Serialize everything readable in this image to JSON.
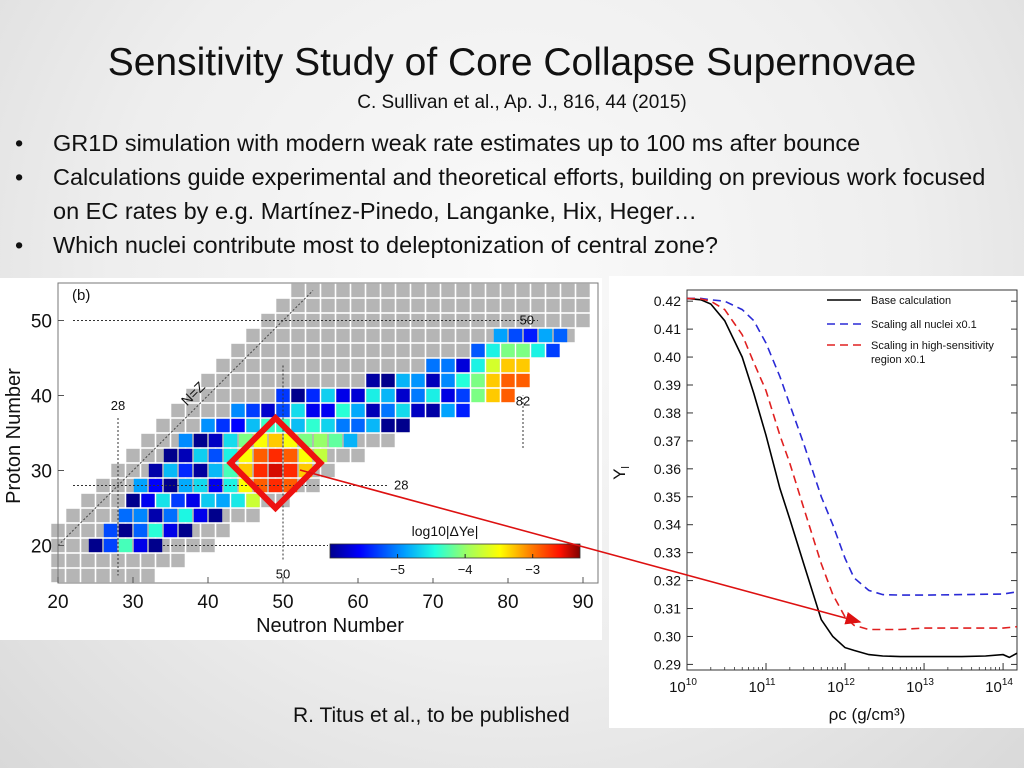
{
  "title": "Sensitivity Study of Core Collapse Supernovae",
  "citation": "C. Sullivan et al., Ap. J., 816, 44 (2015)",
  "bullets": [
    "GR1D simulation with modern weak rate estimates up to 100 ms after bounce",
    "Calculations guide experimental and theoretical efforts, building on previous work focused on EC rates by e.g. Martínez-Pinedo, Langanke, Hix, Heger…",
    "Which nuclei contribute most to deleptonization of central zone?"
  ],
  "bullet_marker": "•",
  "credit": "R. Titus et al., to be published",
  "colors": {
    "highlight": "#ee1111",
    "arrow": "#dd1111",
    "grey_cell": "#b5b5b5",
    "base": "#000000",
    "all": "#2a2ad6",
    "high": "#e02020"
  },
  "chart_data": [
    {
      "type": "heatmap",
      "panel_label": "(b)",
      "xlabel": "Neutron Number",
      "ylabel": "Proton Number",
      "xlim": [
        20,
        92
      ],
      "ylim": [
        15,
        55
      ],
      "x_ticks": [
        20,
        30,
        40,
        50,
        60,
        70,
        80,
        90
      ],
      "y_ticks": [
        20,
        30,
        40,
        50
      ],
      "magic_lines": [
        {
          "axis": "x",
          "value": 28,
          "label": "28"
        },
        {
          "axis": "x",
          "value": 50,
          "label": "50"
        },
        {
          "axis": "x",
          "value": 82,
          "label": "82"
        },
        {
          "axis": "y",
          "value": 20,
          "label": "20"
        },
        {
          "axis": "y",
          "value": 28,
          "label": "28"
        },
        {
          "axis": "y",
          "value": 50,
          "label": "50"
        }
      ],
      "nz_label": "N=Z",
      "colorbar": {
        "label": "log10|ΔYe|",
        "range": [
          -6,
          -2.3
        ],
        "ticks": [
          {
            "value": -5,
            "label": "−5"
          },
          {
            "value": -4,
            "label": "−4"
          },
          {
            "value": -3,
            "label": "−3"
          }
        ]
      },
      "sensitivity_band": [
        {
          "z": 20,
          "n_from": 25,
          "n_to": 33
        },
        {
          "z": 22,
          "n_from": 27,
          "n_to": 37
        },
        {
          "z": 24,
          "n_from": 29,
          "n_to": 41
        },
        {
          "z": 26,
          "n_from": 30,
          "n_to": 46
        },
        {
          "z": 28,
          "n_from": 31,
          "n_to": 51
        },
        {
          "z": 30,
          "n_from": 33,
          "n_to": 53
        },
        {
          "z": 32,
          "n_from": 35,
          "n_to": 56
        },
        {
          "z": 34,
          "n_from": 37,
          "n_to": 60
        },
        {
          "z": 36,
          "n_from": 40,
          "n_to": 66
        },
        {
          "z": 38,
          "n_from": 44,
          "n_to": 74
        },
        {
          "z": 40,
          "n_from": 50,
          "n_to": 80
        },
        {
          "z": 42,
          "n_from": 62,
          "n_to": 82
        },
        {
          "z": 44,
          "n_from": 70,
          "n_to": 83
        },
        {
          "z": 46,
          "n_from": 76,
          "n_to": 86
        },
        {
          "z": 48,
          "n_from": 79,
          "n_to": 87
        }
      ],
      "hotspots": [
        {
          "n": 49,
          "z": 30,
          "value": -2.5
        },
        {
          "n": 81,
          "z": 41,
          "value": -2.8
        },
        {
          "n": 55,
          "z": 32,
          "value": -3.8
        }
      ],
      "highlight_region": {
        "n_center": 49,
        "z_center": 31,
        "half_width": 6
      }
    },
    {
      "type": "line",
      "xlabel": "ρc (g/cm³)",
      "ylabel": "Yl",
      "x_scale": "log",
      "xlim": [
        10000000000.0,
        150000000000000.0
      ],
      "ylim": [
        0.288,
        0.424
      ],
      "x_ticks": [
        {
          "base": "10",
          "exp": "10"
        },
        {
          "base": "10",
          "exp": "11"
        },
        {
          "base": "10",
          "exp": "12"
        },
        {
          "base": "10",
          "exp": "13"
        },
        {
          "base": "10",
          "exp": "14"
        }
      ],
      "y_ticks": [
        0.29,
        0.3,
        0.31,
        0.32,
        0.33,
        0.34,
        0.35,
        0.36,
        0.37,
        0.38,
        0.39,
        0.4,
        0.41,
        0.42
      ],
      "y_tick_labels": [
        "0.29",
        "0.30",
        "0.31",
        "0.32",
        "0.33",
        "0.34",
        "0.35",
        "0.36",
        "0.37",
        "0.38",
        "0.39",
        "0.40",
        "0.41",
        "0.42"
      ],
      "legend_position": "top-right",
      "series": [
        {
          "name": "Base calculation",
          "style": "solid",
          "color": "#000000",
          "x": [
            10000000000.0,
            15000000000.0,
            20000000000.0,
            30000000000.0,
            50000000000.0,
            70000000000.0,
            100000000000.0,
            150000000000.0,
            200000000000.0,
            300000000000.0,
            500000000000.0,
            700000000000.0,
            1000000000000.0,
            1300000000000.0,
            2000000000000.0,
            3000000000000.0,
            5000000000000.0,
            10000000000000.0,
            30000000000000.0,
            60000000000000.0,
            100000000000000.0,
            120000000000000.0,
            150000000000000.0
          ],
          "y": [
            0.421,
            0.4205,
            0.419,
            0.413,
            0.4,
            0.387,
            0.372,
            0.353,
            0.342,
            0.326,
            0.306,
            0.3,
            0.296,
            0.295,
            0.2935,
            0.293,
            0.2928,
            0.2928,
            0.2928,
            0.293,
            0.2935,
            0.2925,
            0.294
          ]
        },
        {
          "name": "Scaling all nuclei  x0.1",
          "style": "dashed",
          "color": "#2a2ad6",
          "x": [
            10000000000.0,
            15000000000.0,
            20000000000.0,
            30000000000.0,
            50000000000.0,
            70000000000.0,
            100000000000.0,
            150000000000.0,
            200000000000.0,
            300000000000.0,
            500000000000.0,
            700000000000.0,
            1000000000000.0,
            1300000000000.0,
            2000000000000.0,
            3000000000000.0,
            5000000000000.0,
            10000000000000.0,
            30000000000000.0,
            100000000000000.0,
            150000000000000.0
          ],
          "y": [
            0.421,
            0.421,
            0.4205,
            0.42,
            0.417,
            0.413,
            0.405,
            0.393,
            0.383,
            0.369,
            0.35,
            0.34,
            0.328,
            0.321,
            0.3165,
            0.315,
            0.3148,
            0.3148,
            0.315,
            0.3152,
            0.316
          ]
        },
        {
          "name": "Scaling in high-sensitivity region x0.1",
          "style": "dashed",
          "color": "#e02020",
          "x": [
            10000000000.0,
            15000000000.0,
            20000000000.0,
            30000000000.0,
            50000000000.0,
            70000000000.0,
            100000000000.0,
            150000000000.0,
            200000000000.0,
            300000000000.0,
            500000000000.0,
            700000000000.0,
            1000000000000.0,
            1300000000000.0,
            2000000000000.0,
            3000000000000.0,
            5000000000000.0,
            10000000000000.0,
            30000000000000.0,
            100000000000000.0,
            150000000000000.0
          ],
          "y": [
            0.421,
            0.4208,
            0.42,
            0.417,
            0.408,
            0.398,
            0.388,
            0.372,
            0.362,
            0.346,
            0.326,
            0.315,
            0.307,
            0.304,
            0.3025,
            0.3025,
            0.3025,
            0.303,
            0.303,
            0.303,
            0.3035
          ]
        }
      ]
    }
  ]
}
